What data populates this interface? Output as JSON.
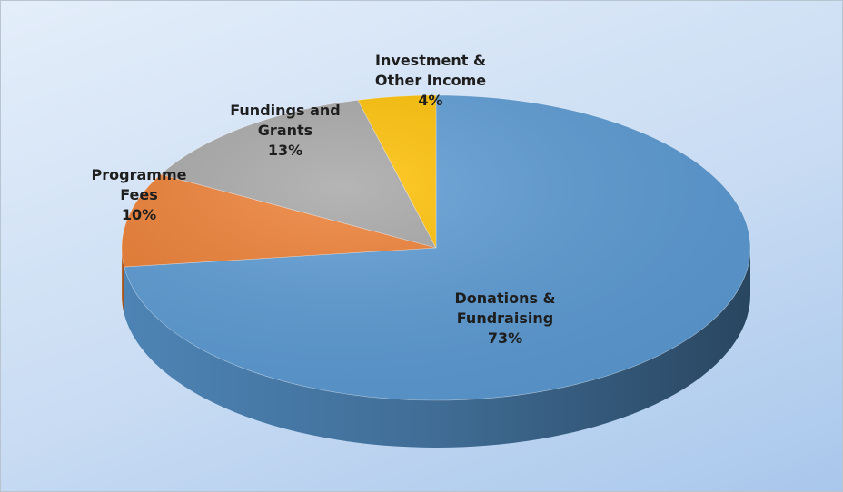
{
  "chart_data": {
    "type": "pie",
    "categories": [
      "Donations & Fundraising",
      "Programme Fees",
      "Fundings and Grants",
      "Investment & Other Income"
    ],
    "values": [
      73,
      10,
      13,
      4
    ],
    "value_labels": [
      "73%",
      "10%",
      "13%",
      "4%"
    ],
    "colors": [
      "#5b9bd5",
      "#ed7d31",
      "#a5a5a5",
      "#ffc000"
    ]
  }
}
